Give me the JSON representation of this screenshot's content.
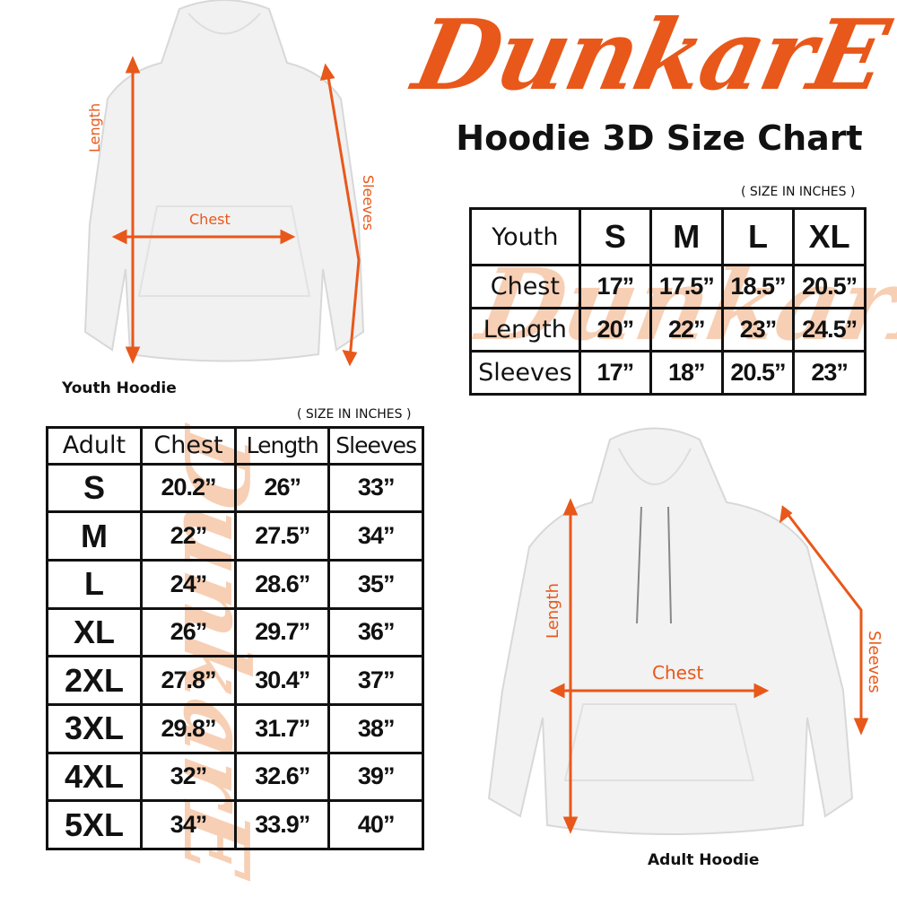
{
  "brand": {
    "logo_text": "DunkarE",
    "color": "#e8581a"
  },
  "title": "Hoodie 3D Size Chart",
  "youth": {
    "unit_note": "( SIZE IN INCHES )",
    "caption": "Youth Hoodie",
    "labels": {
      "length": "Length",
      "chest": "Chest",
      "sleeves": "Sleeves"
    },
    "header": [
      "Youth",
      "S",
      "M",
      "L",
      "XL"
    ],
    "rows": [
      [
        "Chest",
        "17”",
        "17.5”",
        "18.5”",
        "20.5”"
      ],
      [
        "Length",
        "20”",
        "22”",
        "23”",
        "24.5”"
      ],
      [
        "Sleeves",
        "17”",
        "18”",
        "20.5”",
        "23”"
      ]
    ]
  },
  "adult": {
    "unit_note": "( SIZE IN INCHES )",
    "caption": "Adult Hoodie",
    "labels": {
      "length": "Length",
      "chest": "Chest",
      "sleeves": "Sleeves"
    },
    "header": [
      "Adult",
      "Chest",
      "Length",
      "Sleeves"
    ],
    "rows": [
      [
        "S",
        "20.2”",
        "26”",
        "33”"
      ],
      [
        "M",
        "22”",
        "27.5”",
        "34”"
      ],
      [
        "L",
        "24”",
        "28.6”",
        "35”"
      ],
      [
        "XL",
        "26”",
        "29.7”",
        "36”"
      ],
      [
        "2XL",
        "27.8”",
        "30.4”",
        "37”"
      ],
      [
        "3XL",
        "29.8”",
        "31.7”",
        "38”"
      ],
      [
        "4XL",
        "32”",
        "32.6”",
        "39”"
      ],
      [
        "5XL",
        "34”",
        "33.9”",
        "40”"
      ]
    ]
  }
}
